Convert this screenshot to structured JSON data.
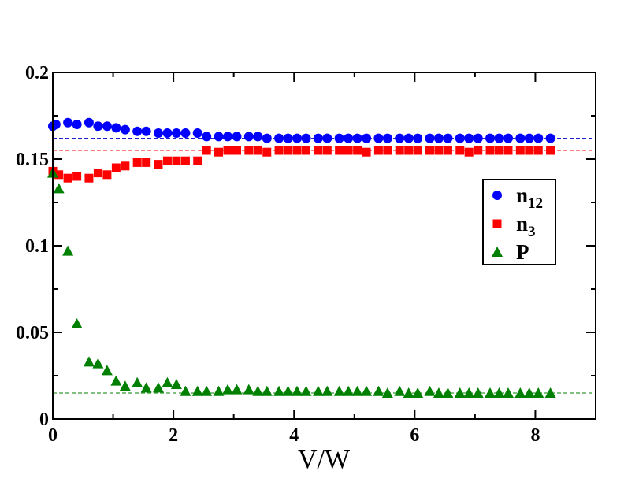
{
  "chart_data": {
    "type": "scatter",
    "title": "",
    "xlabel": "V/W",
    "ylabel": "",
    "xlim": [
      0,
      9
    ],
    "ylim": [
      0,
      0.2
    ],
    "xticks": [
      0,
      2,
      4,
      6,
      8
    ],
    "xtick_labels": [
      "0",
      "2",
      "4",
      "6",
      "8"
    ],
    "yticks": [
      0,
      0.05,
      0.1,
      0.15,
      0.2
    ],
    "ytick_labels": [
      "0",
      "0.05",
      "0.1",
      "0.15",
      "0.2"
    ],
    "grid": false,
    "legend_position": "right",
    "reference_lines": [
      {
        "name": "n12-reference",
        "y": 0.162,
        "color": "#0000cc"
      },
      {
        "name": "n3-reference",
        "y": 0.155,
        "color": "#ff0000"
      },
      {
        "name": "P-reference",
        "y": 0.015,
        "color": "#008000"
      }
    ],
    "series": [
      {
        "name": "n12",
        "label_main": "n",
        "label_sub": "12",
        "marker": "circle",
        "color": "#0000ff",
        "x": [
          0.0,
          0.05,
          0.25,
          0.4,
          0.6,
          0.75,
          0.9,
          1.05,
          1.2,
          1.4,
          1.55,
          1.75,
          1.9,
          2.05,
          2.2,
          2.4,
          2.55,
          2.75,
          2.9,
          3.05,
          3.25,
          3.4,
          3.55,
          3.75,
          3.9,
          4.05,
          4.2,
          4.4,
          4.55,
          4.75,
          4.9,
          5.05,
          5.2,
          5.4,
          5.55,
          5.75,
          5.9,
          6.05,
          6.25,
          6.4,
          6.55,
          6.75,
          6.9,
          7.05,
          7.25,
          7.4,
          7.55,
          7.75,
          7.9,
          8.05,
          8.25
        ],
        "y": [
          0.169,
          0.17,
          0.171,
          0.17,
          0.171,
          0.169,
          0.169,
          0.168,
          0.167,
          0.166,
          0.166,
          0.165,
          0.165,
          0.165,
          0.165,
          0.165,
          0.163,
          0.163,
          0.163,
          0.163,
          0.163,
          0.163,
          0.162,
          0.162,
          0.162,
          0.162,
          0.162,
          0.162,
          0.162,
          0.162,
          0.162,
          0.162,
          0.162,
          0.162,
          0.162,
          0.162,
          0.162,
          0.162,
          0.162,
          0.162,
          0.162,
          0.162,
          0.162,
          0.162,
          0.162,
          0.162,
          0.162,
          0.162,
          0.162,
          0.162,
          0.162
        ]
      },
      {
        "name": "n3",
        "label_main": "n",
        "label_sub": "3",
        "marker": "square",
        "color": "#ff0000",
        "x": [
          0.0,
          0.1,
          0.25,
          0.4,
          0.6,
          0.75,
          0.9,
          1.05,
          1.2,
          1.4,
          1.55,
          1.75,
          1.9,
          2.05,
          2.2,
          2.4,
          2.55,
          2.75,
          2.9,
          3.05,
          3.25,
          3.4,
          3.55,
          3.75,
          3.9,
          4.05,
          4.2,
          4.4,
          4.55,
          4.75,
          4.9,
          5.05,
          5.2,
          5.4,
          5.55,
          5.75,
          5.9,
          6.05,
          6.25,
          6.4,
          6.55,
          6.75,
          6.9,
          7.05,
          7.25,
          7.4,
          7.55,
          7.75,
          7.9,
          8.05,
          8.25
        ],
        "y": [
          0.143,
          0.141,
          0.139,
          0.14,
          0.139,
          0.142,
          0.141,
          0.145,
          0.146,
          0.148,
          0.148,
          0.147,
          0.149,
          0.149,
          0.149,
          0.149,
          0.155,
          0.154,
          0.155,
          0.155,
          0.155,
          0.155,
          0.154,
          0.155,
          0.155,
          0.155,
          0.155,
          0.155,
          0.155,
          0.155,
          0.155,
          0.155,
          0.154,
          0.155,
          0.155,
          0.155,
          0.155,
          0.155,
          0.155,
          0.155,
          0.155,
          0.155,
          0.154,
          0.155,
          0.155,
          0.155,
          0.155,
          0.155,
          0.155,
          0.155,
          0.155
        ]
      },
      {
        "name": "P",
        "label_main": "P",
        "label_sub": "",
        "marker": "triangle",
        "color": "#008000",
        "x": [
          0.0,
          0.1,
          0.25,
          0.4,
          0.6,
          0.75,
          0.9,
          1.05,
          1.2,
          1.4,
          1.55,
          1.75,
          1.9,
          2.05,
          2.2,
          2.4,
          2.55,
          2.75,
          2.9,
          3.05,
          3.25,
          3.4,
          3.55,
          3.75,
          3.9,
          4.05,
          4.2,
          4.4,
          4.55,
          4.75,
          4.9,
          5.05,
          5.2,
          5.4,
          5.55,
          5.75,
          5.9,
          6.05,
          6.25,
          6.4,
          6.55,
          6.75,
          6.9,
          7.05,
          7.25,
          7.4,
          7.55,
          7.75,
          7.9,
          8.05,
          8.25
        ],
        "y": [
          0.142,
          0.133,
          0.097,
          0.055,
          0.033,
          0.032,
          0.028,
          0.022,
          0.019,
          0.021,
          0.018,
          0.018,
          0.021,
          0.02,
          0.016,
          0.016,
          0.016,
          0.016,
          0.017,
          0.017,
          0.017,
          0.016,
          0.016,
          0.016,
          0.016,
          0.016,
          0.016,
          0.016,
          0.016,
          0.016,
          0.016,
          0.016,
          0.016,
          0.016,
          0.015,
          0.016,
          0.015,
          0.015,
          0.016,
          0.015,
          0.015,
          0.015,
          0.015,
          0.015,
          0.015,
          0.015,
          0.015,
          0.015,
          0.015,
          0.015,
          0.015
        ]
      }
    ]
  }
}
